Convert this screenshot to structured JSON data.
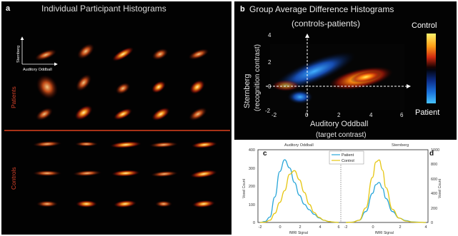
{
  "panel_a": {
    "letter": "a",
    "title": "Individual Participant Histograms",
    "axis_y_label": "Sternberg",
    "axis_x_label": "Auditory Oddball",
    "group_patients": "Patients",
    "group_controls": "Controls"
  },
  "panel_b": {
    "letter": "b",
    "title": "Group Average Difference Histograms",
    "subtitle": "(controls-patients)",
    "ylabel_line1": "Sternberg",
    "ylabel_line2": "(recognition contrast)",
    "xlabel_line1": "Auditory Oddball",
    "xlabel_line2": "(target contrast)",
    "colorbar_top": "Control",
    "colorbar_bottom": "Patient",
    "xticks": [
      "-2",
      "0",
      "2",
      "4",
      "6"
    ],
    "yticks": [
      "4",
      "2",
      "0",
      "-2"
    ]
  },
  "panel_c": {
    "letter": "c",
    "title": "Auditory Oddball",
    "xlabel": "fMRI Signal",
    "ylabel": "Voxel Count",
    "xticks": [
      "-2",
      "0",
      "2",
      "4",
      "6"
    ],
    "yticks": [
      "0",
      "100",
      "200",
      "300",
      "400"
    ]
  },
  "panel_d": {
    "letter": "d",
    "title": "Sternberg",
    "xlabel": "fMRI Signal",
    "ylabel": "Voxel Count",
    "xticks": [
      "-2",
      "0",
      "2",
      "4"
    ],
    "yticks": [
      "0",
      "200",
      "400",
      "600",
      "800",
      "1000"
    ]
  },
  "legend": {
    "patient": "Patient",
    "control": "Control"
  },
  "colors": {
    "patient": "#29a6d8",
    "control": "#e6c612",
    "group_label": "#d9432b"
  },
  "chart_data": [
    {
      "type": "line",
      "panel": "c",
      "title": "Auditory Oddball",
      "xlabel": "fMRI Signal",
      "ylabel": "Voxel Count",
      "xlim": [
        -2,
        6
      ],
      "ylim": [
        0,
        400
      ],
      "x": [
        -2,
        -1.5,
        -1,
        -0.5,
        0,
        0.5,
        1,
        1.5,
        2,
        2.5,
        3,
        3.5,
        4,
        4.5,
        5,
        5.5,
        6
      ],
      "series": [
        {
          "name": "Patient",
          "values": [
            0,
            5,
            30,
            140,
            280,
            345,
            300,
            220,
            150,
            100,
            70,
            45,
            25,
            12,
            5,
            2,
            0
          ]
        },
        {
          "name": "Control",
          "values": [
            0,
            2,
            12,
            50,
            110,
            175,
            265,
            285,
            235,
            165,
            100,
            55,
            28,
            12,
            5,
            2,
            0
          ]
        }
      ]
    },
    {
      "type": "line",
      "panel": "d",
      "title": "Sternberg",
      "xlabel": "fMRI Signal",
      "ylabel": "Voxel Count",
      "xlim": [
        -2,
        4
      ],
      "ylim": [
        0,
        1000
      ],
      "x": [
        -2,
        -1.5,
        -1,
        -0.5,
        0,
        0.25,
        0.5,
        0.75,
        1,
        1.5,
        2,
        2.5,
        3,
        3.5,
        4
      ],
      "series": [
        {
          "name": "Patient",
          "values": [
            0,
            5,
            30,
            150,
            400,
            520,
            550,
            470,
            330,
            150,
            60,
            25,
            8,
            3,
            0
          ]
        },
        {
          "name": "Control",
          "values": [
            0,
            4,
            30,
            200,
            620,
            830,
            860,
            720,
            480,
            180,
            60,
            20,
            6,
            2,
            0
          ]
        }
      ]
    }
  ]
}
